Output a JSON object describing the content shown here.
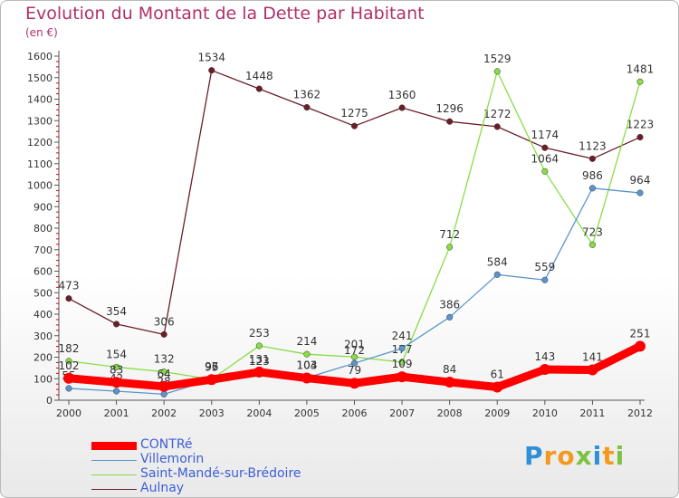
{
  "title": "Evolution du Montant de la Dette par Habitant",
  "unit": "(en €)",
  "logo": "Proxiti",
  "colors": {
    "title": "#b0306a",
    "legend_text": "#3d5ed8"
  },
  "chart_data": {
    "type": "line",
    "x": [
      "2000",
      "2001",
      "2002",
      "2003",
      "2004",
      "2005",
      "2006",
      "2007",
      "2008",
      "2009",
      "2010",
      "2011",
      "2012"
    ],
    "ylim": [
      0,
      1600
    ],
    "yticks": [
      0,
      100,
      200,
      300,
      400,
      500,
      600,
      700,
      800,
      900,
      1000,
      1100,
      1200,
      1300,
      1400,
      1500,
      1600
    ],
    "grid": false,
    "legend_position": "bottom-left",
    "series": [
      {
        "name": "Aulnay",
        "color": "#6b1e28",
        "values": [
          473,
          354,
          306,
          1534,
          1448,
          1362,
          1275,
          1360,
          1296,
          1272,
          1174,
          1123,
          1223
        ],
        "labels": [
          "473",
          "354",
          "306",
          "1534",
          "1448",
          "1362",
          "1275",
          "1360",
          "1296",
          "1272",
          "1174",
          "1123",
          "1223"
        ]
      },
      {
        "name": "Saint-Mandé-sur-Brédoire",
        "color": "#88dd44",
        "values": [
          182,
          154,
          132,
          97,
          253,
          214,
          201,
          177,
          712,
          1529,
          1064,
          723,
          1481
        ],
        "labels": [
          "182",
          "154",
          "132",
          "97",
          "253",
          "214",
          "201",
          "177",
          "712",
          "1529",
          "1064",
          "723",
          "1481"
        ]
      },
      {
        "name": "Villemorin",
        "color": "#5b95cc",
        "values": [
          55,
          42,
          28,
          95,
          123,
          104,
          172,
          241,
          386,
          584,
          559,
          986,
          964
        ],
        "labels": [
          "55",
          "42",
          "28",
          "95",
          "123",
          "104",
          "172",
          "241",
          "386",
          "584",
          "559",
          "986",
          "964"
        ]
      },
      {
        "name": "CONTRé",
        "color": "#ff0000",
        "values": [
          102,
          83,
          64,
          96,
          131,
          103,
          79,
          109,
          84,
          61,
          143,
          141,
          251
        ],
        "labels": [
          "102",
          "83",
          "64",
          "96",
          "131",
          "103",
          "79",
          "109",
          "84",
          "61",
          "143",
          "141",
          "251"
        ]
      }
    ]
  }
}
